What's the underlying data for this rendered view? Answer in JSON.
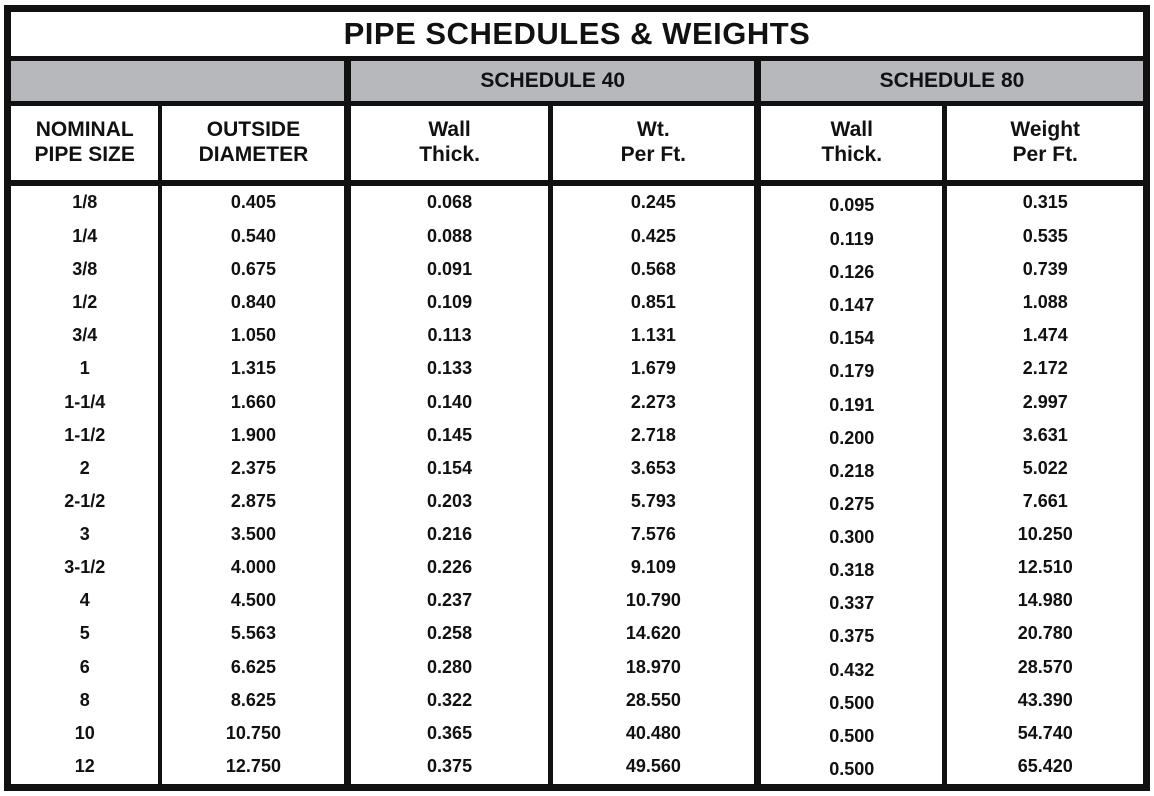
{
  "title": "PIPE SCHEDULES & WEIGHTS",
  "schedules": {
    "schedule40": "SCHEDULE 40",
    "schedule80": "SCHEDULE 80"
  },
  "headers": {
    "size": "NOMINAL\nPIPE SIZE",
    "od": "OUTSIDE\nDIAMETER",
    "wall40": "Wall\nThick.",
    "wt40": "Wt.\nPer Ft.",
    "wall80": "Wall\nThick.",
    "wt80": "Weight\nPer Ft."
  },
  "colors": {
    "border": "#111111",
    "schedule_band": "#b7b8bc",
    "text": "#111111",
    "background": "#ffffff"
  },
  "rows": [
    {
      "size": "1/8",
      "od": "0.405",
      "wall40": "0.068",
      "wt40": "0.245",
      "wall80": "0.095",
      "wt80": "0.315"
    },
    {
      "size": "1/4",
      "od": "0.540",
      "wall40": "0.088",
      "wt40": "0.425",
      "wall80": "0.119",
      "wt80": "0.535"
    },
    {
      "size": "3/8",
      "od": "0.675",
      "wall40": "0.091",
      "wt40": "0.568",
      "wall80": "0.126",
      "wt80": "0.739"
    },
    {
      "size": "1/2",
      "od": "0.840",
      "wall40": "0.109",
      "wt40": "0.851",
      "wall80": "0.147",
      "wt80": "1.088"
    },
    {
      "size": "3/4",
      "od": "1.050",
      "wall40": "0.113",
      "wt40": "1.131",
      "wall80": "0.154",
      "wt80": "1.474"
    },
    {
      "size": "1",
      "od": "1.315",
      "wall40": "0.133",
      "wt40": "1.679",
      "wall80": "0.179",
      "wt80": "2.172"
    },
    {
      "size": "1-1/4",
      "od": "1.660",
      "wall40": "0.140",
      "wt40": "2.273",
      "wall80": "0.191",
      "wt80": "2.997"
    },
    {
      "size": "1-1/2",
      "od": "1.900",
      "wall40": "0.145",
      "wt40": "2.718",
      "wall80": "0.200",
      "wt80": "3.631"
    },
    {
      "size": "2",
      "od": "2.375",
      "wall40": "0.154",
      "wt40": "3.653",
      "wall80": "0.218",
      "wt80": "5.022"
    },
    {
      "size": "2-1/2",
      "od": "2.875",
      "wall40": "0.203",
      "wt40": "5.793",
      "wall80": "0.275",
      "wt80": "7.661"
    },
    {
      "size": "3",
      "od": "3.500",
      "wall40": "0.216",
      "wt40": "7.576",
      "wall80": "0.300",
      "wt80": "10.250"
    },
    {
      "size": "3-1/2",
      "od": "4.000",
      "wall40": "0.226",
      "wt40": "9.109",
      "wall80": "0.318",
      "wt80": "12.510"
    },
    {
      "size": "4",
      "od": "4.500",
      "wall40": "0.237",
      "wt40": "10.790",
      "wall80": "0.337",
      "wt80": "14.980"
    },
    {
      "size": "5",
      "od": "5.563",
      "wall40": "0.258",
      "wt40": "14.620",
      "wall80": "0.375",
      "wt80": "20.780"
    },
    {
      "size": "6",
      "od": "6.625",
      "wall40": "0.280",
      "wt40": "18.970",
      "wall80": "0.432",
      "wt80": "28.570"
    },
    {
      "size": "8",
      "od": "8.625",
      "wall40": "0.322",
      "wt40": "28.550",
      "wall80": "0.500",
      "wt80": "43.390"
    },
    {
      "size": "10",
      "od": "10.750",
      "wall40": "0.365",
      "wt40": "40.480",
      "wall80": "0.500",
      "wt80": "54.740"
    },
    {
      "size": "12",
      "od": "12.750",
      "wall40": "0.375",
      "wt40": "49.560",
      "wall80": "0.500",
      "wt80": "65.420"
    }
  ]
}
